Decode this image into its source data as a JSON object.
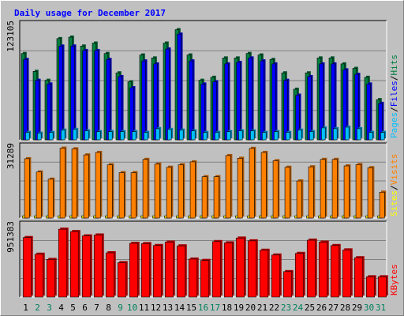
{
  "chart_data": [
    {
      "type": "bar",
      "panel": "hits-files-pages",
      "title": "Daily usage for December 2017",
      "y_max_label": "123105",
      "ylim": [
        0,
        123105
      ],
      "categories": [
        "1",
        "2",
        "3",
        "4",
        "5",
        "6",
        "7",
        "8",
        "9",
        "10",
        "11",
        "12",
        "13",
        "14",
        "15",
        "16",
        "17",
        "18",
        "19",
        "20",
        "21",
        "22",
        "23",
        "24",
        "25",
        "26",
        "27",
        "28",
        "29",
        "30",
        "31"
      ],
      "series": [
        {
          "name": "Hits",
          "color": "#008040",
          "values": [
            92800,
            73600,
            64000,
            108800,
            110400,
            100800,
            104000,
            92800,
            72000,
            62400,
            91200,
            88000,
            104000,
            118400,
            91200,
            64000,
            67200,
            88000,
            88000,
            92800,
            91200,
            86400,
            72000,
            54400,
            72000,
            88000,
            88000,
            81600,
            76800,
            67200,
            43200
          ]
        },
        {
          "name": "Files",
          "color": "#0000ff",
          "values": [
            86400,
            64000,
            60000,
            100800,
            100800,
            96000,
            96000,
            86400,
            68000,
            56000,
            84800,
            81600,
            97600,
            113600,
            84800,
            60000,
            62400,
            81600,
            83200,
            88000,
            84800,
            81600,
            64000,
            48000,
            68000,
            81600,
            81600,
            75200,
            70400,
            60000,
            39200
          ]
        },
        {
          "name": "Pages",
          "color": "#00c0ff",
          "values": [
            8000,
            7200,
            8000,
            10400,
            11200,
            9600,
            8800,
            8800,
            8800,
            8800,
            8000,
            12000,
            11200,
            10400,
            9600,
            8000,
            8000,
            8800,
            9600,
            9600,
            8000,
            8800,
            8000,
            10400,
            8800,
            12800,
            12000,
            13600,
            12000,
            8000,
            8000
          ]
        }
      ],
      "legend": [
        "Pages",
        "Files",
        "Hits"
      ],
      "legend_separator": "/",
      "legend_placement": "right-vertical",
      "grid": true
    },
    {
      "type": "bar",
      "panel": "sites-visits",
      "y_max_label": "31289",
      "ylim": [
        0,
        31289
      ],
      "categories": [
        "1",
        "2",
        "3",
        "4",
        "5",
        "6",
        "7",
        "8",
        "9",
        "10",
        "11",
        "12",
        "13",
        "14",
        "15",
        "16",
        "17",
        "18",
        "19",
        "20",
        "21",
        "22",
        "23",
        "24",
        "25",
        "26",
        "27",
        "28",
        "29",
        "30",
        "31"
      ],
      "series": [
        {
          "name": "Sites",
          "color": "#ffff00",
          "values": [
            1000,
            1000,
            1000,
            1000,
            1000,
            1000,
            1000,
            1000,
            1000,
            1000,
            1000,
            1000,
            1000,
            1000,
            1000,
            1000,
            1000,
            1000,
            1000,
            1000,
            1000,
            1000,
            1000,
            1000,
            1000,
            1000,
            1000,
            1000,
            1000,
            1000,
            1000
          ]
        },
        {
          "name": "Visits",
          "color": "#ff8000",
          "values": [
            26400,
            20500,
            17300,
            31100,
            30800,
            28100,
            29200,
            23700,
            20200,
            20200,
            26100,
            24000,
            22600,
            23700,
            25000,
            18400,
            18400,
            27800,
            26600,
            31000,
            29200,
            25500,
            22600,
            16500,
            22800,
            26100,
            26100,
            23200,
            23800,
            22400,
            11500
          ]
        }
      ],
      "legend": [
        "Sites",
        "Visits"
      ],
      "legend_separator": "/",
      "legend_placement": "right-vertical",
      "grid": true
    },
    {
      "type": "bar",
      "panel": "kbytes",
      "y_max_label": "951383",
      "ylim": [
        0,
        951383
      ],
      "categories": [
        "1",
        "2",
        "3",
        "4",
        "5",
        "6",
        "7",
        "8",
        "9",
        "10",
        "11",
        "12",
        "13",
        "14",
        "15",
        "16",
        "17",
        "18",
        "19",
        "20",
        "21",
        "22",
        "23",
        "24",
        "25",
        "26",
        "27",
        "28",
        "29",
        "30",
        "31"
      ],
      "series": [
        {
          "name": "KBytes",
          "color": "#ff0000",
          "values": [
            796000,
            573000,
            503000,
            908000,
            876000,
            818000,
            830000,
            592000,
            460000,
            719000,
            715000,
            690000,
            735000,
            685000,
            508000,
            490000,
            742000,
            725000,
            789000,
            752000,
            626000,
            562000,
            340000,
            584000,
            761000,
            735000,
            689000,
            631000,
            526000,
            271000,
            271000
          ]
        }
      ],
      "legend": [
        "KBytes"
      ],
      "legend_placement": "right-vertical",
      "grid": true
    }
  ],
  "day_labels": [
    {
      "label": "1",
      "weekend": false
    },
    {
      "label": "2",
      "weekend": true
    },
    {
      "label": "3",
      "weekend": true
    },
    {
      "label": "4",
      "weekend": false
    },
    {
      "label": "5",
      "weekend": false
    },
    {
      "label": "6",
      "weekend": false
    },
    {
      "label": "7",
      "weekend": false
    },
    {
      "label": "8",
      "weekend": false
    },
    {
      "label": "9",
      "weekend": true
    },
    {
      "label": "10",
      "weekend": true
    },
    {
      "label": "11",
      "weekend": false
    },
    {
      "label": "12",
      "weekend": false
    },
    {
      "label": "13",
      "weekend": false
    },
    {
      "label": "14",
      "weekend": false
    },
    {
      "label": "15",
      "weekend": false
    },
    {
      "label": "16",
      "weekend": true
    },
    {
      "label": "17",
      "weekend": true
    },
    {
      "label": "18",
      "weekend": false
    },
    {
      "label": "19",
      "weekend": false
    },
    {
      "label": "20",
      "weekend": false
    },
    {
      "label": "21",
      "weekend": false
    },
    {
      "label": "22",
      "weekend": false
    },
    {
      "label": "23",
      "weekend": true
    },
    {
      "label": "24",
      "weekend": true
    },
    {
      "label": "25",
      "weekend": false
    },
    {
      "label": "26",
      "weekend": false
    },
    {
      "label": "27",
      "weekend": false
    },
    {
      "label": "28",
      "weekend": false
    },
    {
      "label": "29",
      "weekend": false
    },
    {
      "label": "30",
      "weekend": true
    },
    {
      "label": "31",
      "weekend": true
    }
  ],
  "colors": {
    "background": "#c0c0c0",
    "plot_background": "#c0c0c0",
    "gridline": "#808080",
    "title": "#0000ff",
    "weekday_label": "#000000",
    "weekend_label": "#00805c",
    "separator": "#000000"
  }
}
